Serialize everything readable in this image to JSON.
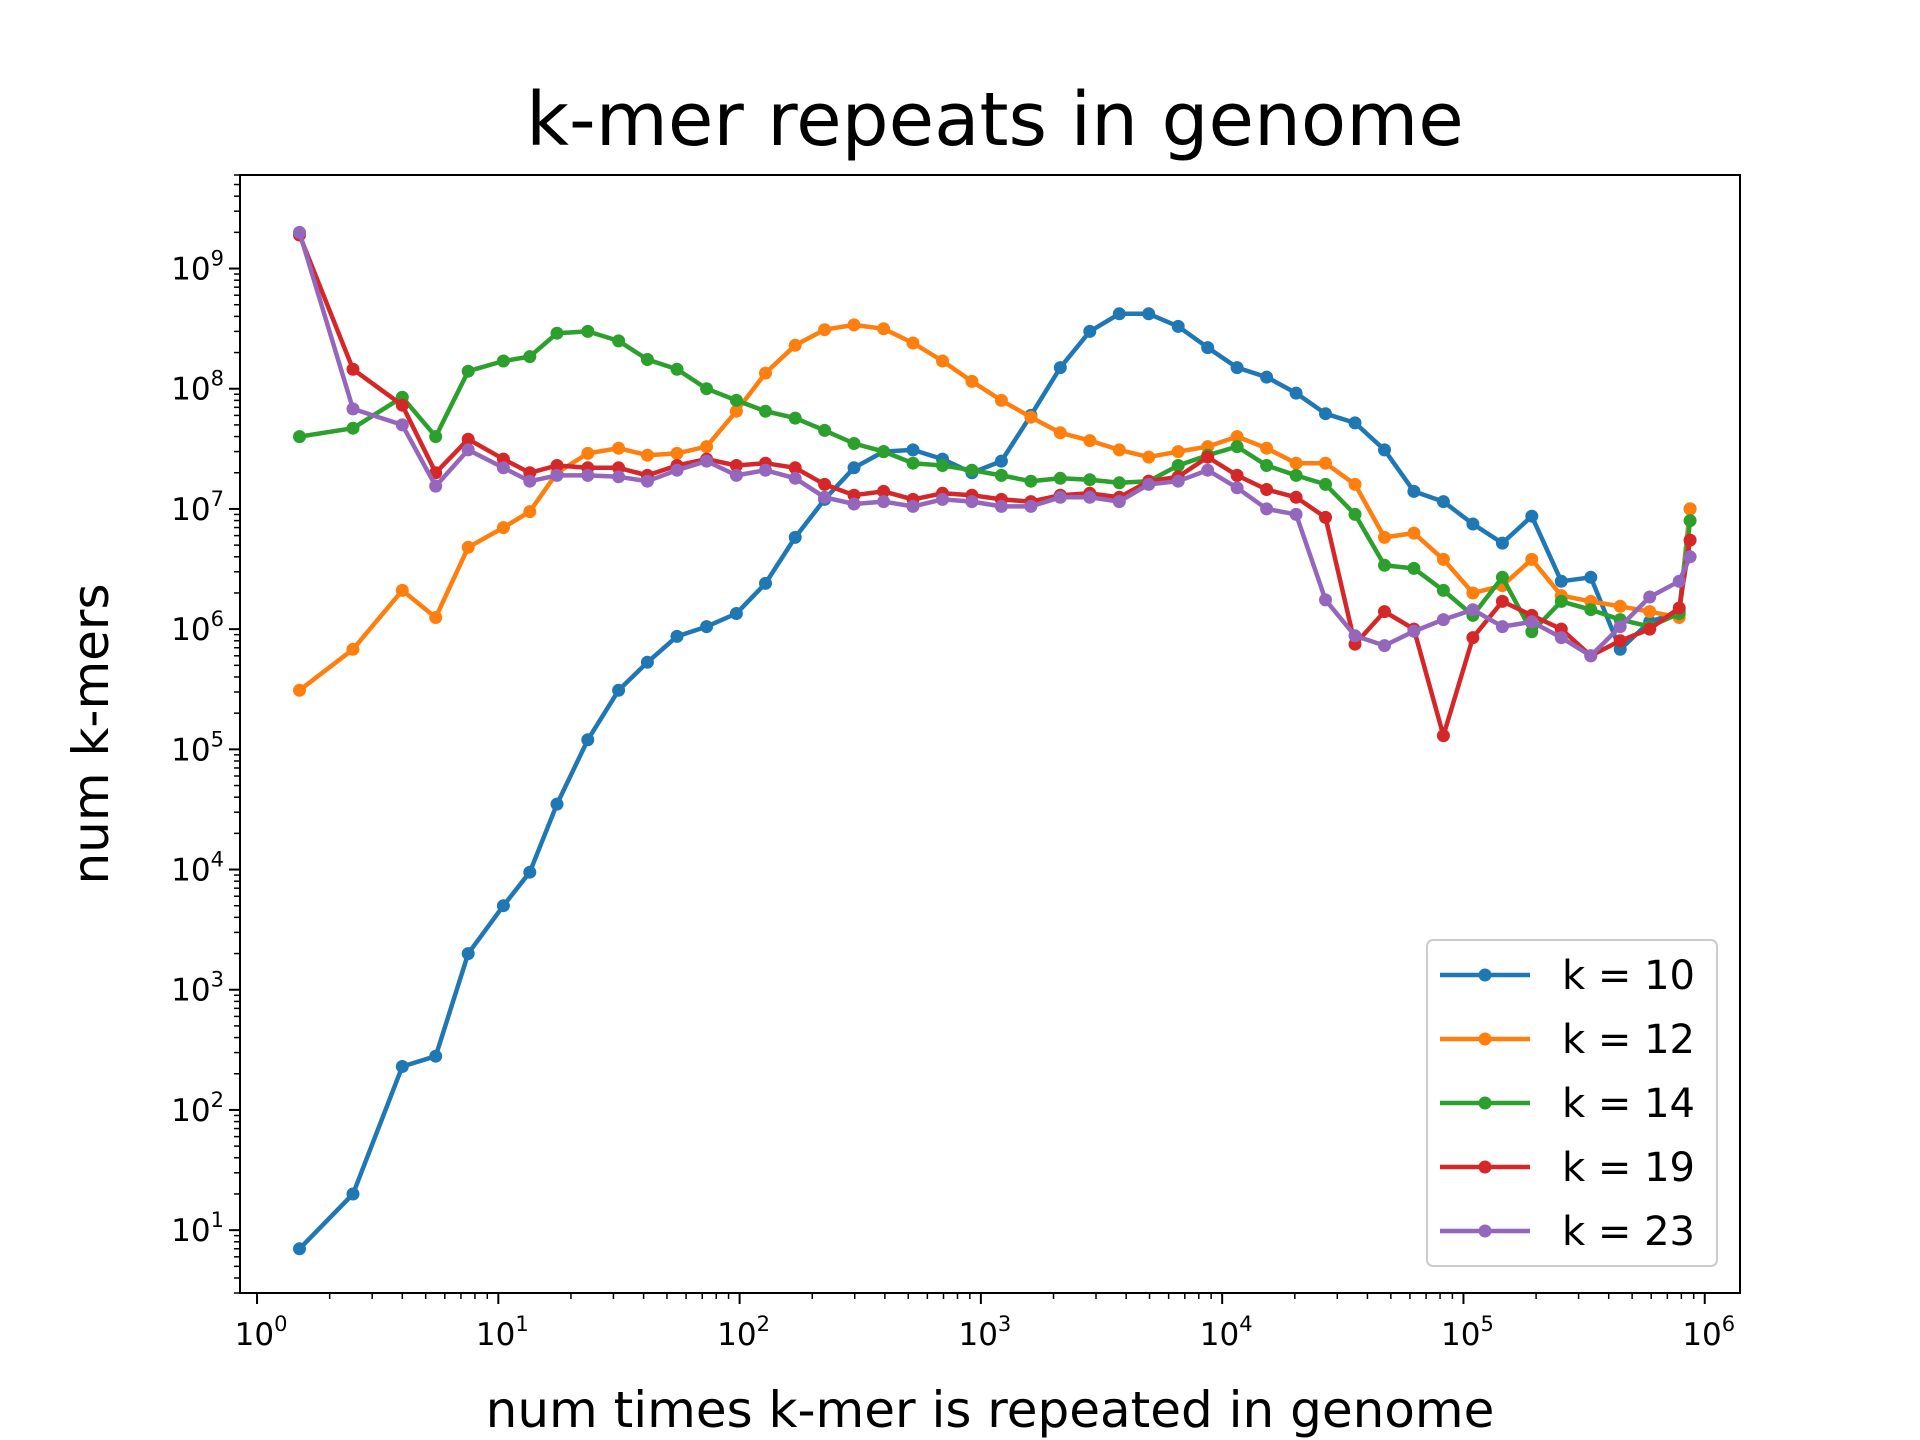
{
  "chart_data": {
    "type": "line",
    "title": "k-mer repeats in genome",
    "xlabel": "num times k-mer is repeated in genome",
    "ylabel": "num k-mers",
    "xscale": "log",
    "yscale": "log",
    "xlim": [
      0.85,
      1400000
    ],
    "ylim": [
      3,
      6000000000
    ],
    "xticks": [
      {
        "base": "10",
        "exp": "0",
        "value": 1
      },
      {
        "base": "10",
        "exp": "1",
        "value": 10
      },
      {
        "base": "10",
        "exp": "2",
        "value": 100
      },
      {
        "base": "10",
        "exp": "3",
        "value": 1000
      },
      {
        "base": "10",
        "exp": "4",
        "value": 10000
      },
      {
        "base": "10",
        "exp": "5",
        "value": 100000
      },
      {
        "base": "10",
        "exp": "6",
        "value": 1000000
      }
    ],
    "yticks": [
      {
        "base": "10",
        "exp": "1",
        "value": 10
      },
      {
        "base": "10",
        "exp": "2",
        "value": 100
      },
      {
        "base": "10",
        "exp": "3",
        "value": 1000
      },
      {
        "base": "10",
        "exp": "4",
        "value": 10000
      },
      {
        "base": "10",
        "exp": "5",
        "value": 100000
      },
      {
        "base": "10",
        "exp": "6",
        "value": 1000000
      },
      {
        "base": "10",
        "exp": "7",
        "value": 10000000
      },
      {
        "base": "10",
        "exp": "8",
        "value": 100000000
      },
      {
        "base": "10",
        "exp": "9",
        "value": 1000000000
      }
    ],
    "grid": false,
    "legend_position": "lower right",
    "x": [
      1.5,
      2.5,
      4,
      5.5,
      7.5,
      10.5,
      13.5,
      17.5,
      23.5,
      31.5,
      41.5,
      55,
      73,
      97,
      128,
      170,
      225,
      298,
      395,
      523,
      693,
      918,
      1216,
      1611,
      2134,
      2827,
      3745,
      4962,
      6573,
      8708,
      11535,
      15281,
      20244,
      26818,
      35527,
      47064,
      62348,
      82596,
      109419,
      144952,
      192024,
      254382,
      336990,
      446428,
      591405,
      783461
    ],
    "series": [
      {
        "name": "k = 10",
        "color": "#1f77b4",
        "values": [
          7,
          20,
          230,
          280,
          2000,
          5000,
          9500,
          35000,
          120000,
          310000,
          530000,
          870000,
          1050000,
          1350000,
          2400000,
          5800000,
          12000000,
          22000000,
          30000000,
          31000000,
          26000000,
          20000000,
          25000000,
          60000000,
          150000000,
          300000000,
          420000000,
          420000000,
          330000000,
          220000000,
          150000000,
          125000000,
          92000000,
          62000000,
          52000000,
          31000000,
          14000000,
          11500000,
          7500000,
          5200000,
          8700000,
          2500000,
          2700000,
          680000,
          1150000,
          1400000
        ]
      },
      {
        "name": "k = 12",
        "color": "#ff7f0e",
        "values": [
          310000,
          680000,
          2100000,
          1250000,
          4800000,
          7000000,
          9500000,
          20000000,
          29000000,
          32000000,
          28000000,
          29000000,
          33000000,
          65000000,
          135000000,
          230000000,
          310000000,
          340000000,
          315000000,
          240000000,
          170000000,
          115000000,
          80000000,
          58000000,
          43000000,
          37000000,
          31000000,
          27000000,
          30000000,
          33000000,
          40000000,
          32000000,
          24000000,
          24000000,
          16000000,
          5800000,
          6300000,
          3800000,
          2000000,
          2300000,
          3800000,
          1900000,
          1700000,
          1550000,
          1400000,
          1250000
        ]
      },
      {
        "name": "k = 14",
        "color": "#2ca02c",
        "values": [
          40000000,
          47000000,
          85000000,
          40000000,
          140000000,
          170000000,
          185000000,
          290000000,
          300000000,
          250000000,
          175000000,
          145000000,
          100000000,
          80000000,
          65000000,
          57000000,
          45000000,
          35000000,
          30000000,
          24000000,
          23000000,
          21000000,
          19000000,
          17000000,
          18000000,
          17500000,
          16500000,
          17000000,
          23000000,
          28000000,
          33000000,
          23000000,
          19000000,
          16000000,
          9000000,
          3400000,
          3200000,
          2100000,
          1300000,
          2700000,
          950000,
          1700000,
          1450000,
          1200000,
          1050000,
          1350000
        ]
      },
      {
        "name": "k = 19",
        "color": "#d62728",
        "values": [
          1900000000,
          145000000,
          73000000,
          20000000,
          38000000,
          26000000,
          20000000,
          23000000,
          22000000,
          22000000,
          19000000,
          23000000,
          26000000,
          23000000,
          24000000,
          22000000,
          16000000,
          13000000,
          14000000,
          12000000,
          13500000,
          13000000,
          12000000,
          11500000,
          13000000,
          13500000,
          12500000,
          17000000,
          18500000,
          27000000,
          19000000,
          14500000,
          12500000,
          8500000,
          750000,
          1400000,
          1000000,
          130000,
          850000,
          1700000,
          1300000,
          1000000,
          600000,
          800000,
          1000000,
          1500000
        ]
      },
      {
        "name": "k = 23",
        "color": "#9467bd",
        "values": [
          2000000000,
          68000000,
          50000000,
          15500000,
          31000000,
          22000000,
          17000000,
          19000000,
          19000000,
          18500000,
          17000000,
          21000000,
          25000000,
          19000000,
          21000000,
          18000000,
          12500000,
          11000000,
          11500000,
          10500000,
          12000000,
          11500000,
          10500000,
          10500000,
          12500000,
          12500000,
          11500000,
          16000000,
          17000000,
          21000000,
          15000000,
          10000000,
          9000000,
          1750000,
          880000,
          730000,
          960000,
          1200000,
          1450000,
          1050000,
          1150000,
          850000,
          600000,
          1050000,
          1850000,
          2500000
        ]
      }
    ],
    "end_points": {
      "x": 870000,
      "values": [
        10000000,
        10000000,
        8000000,
        5500000,
        4000000
      ]
    }
  }
}
